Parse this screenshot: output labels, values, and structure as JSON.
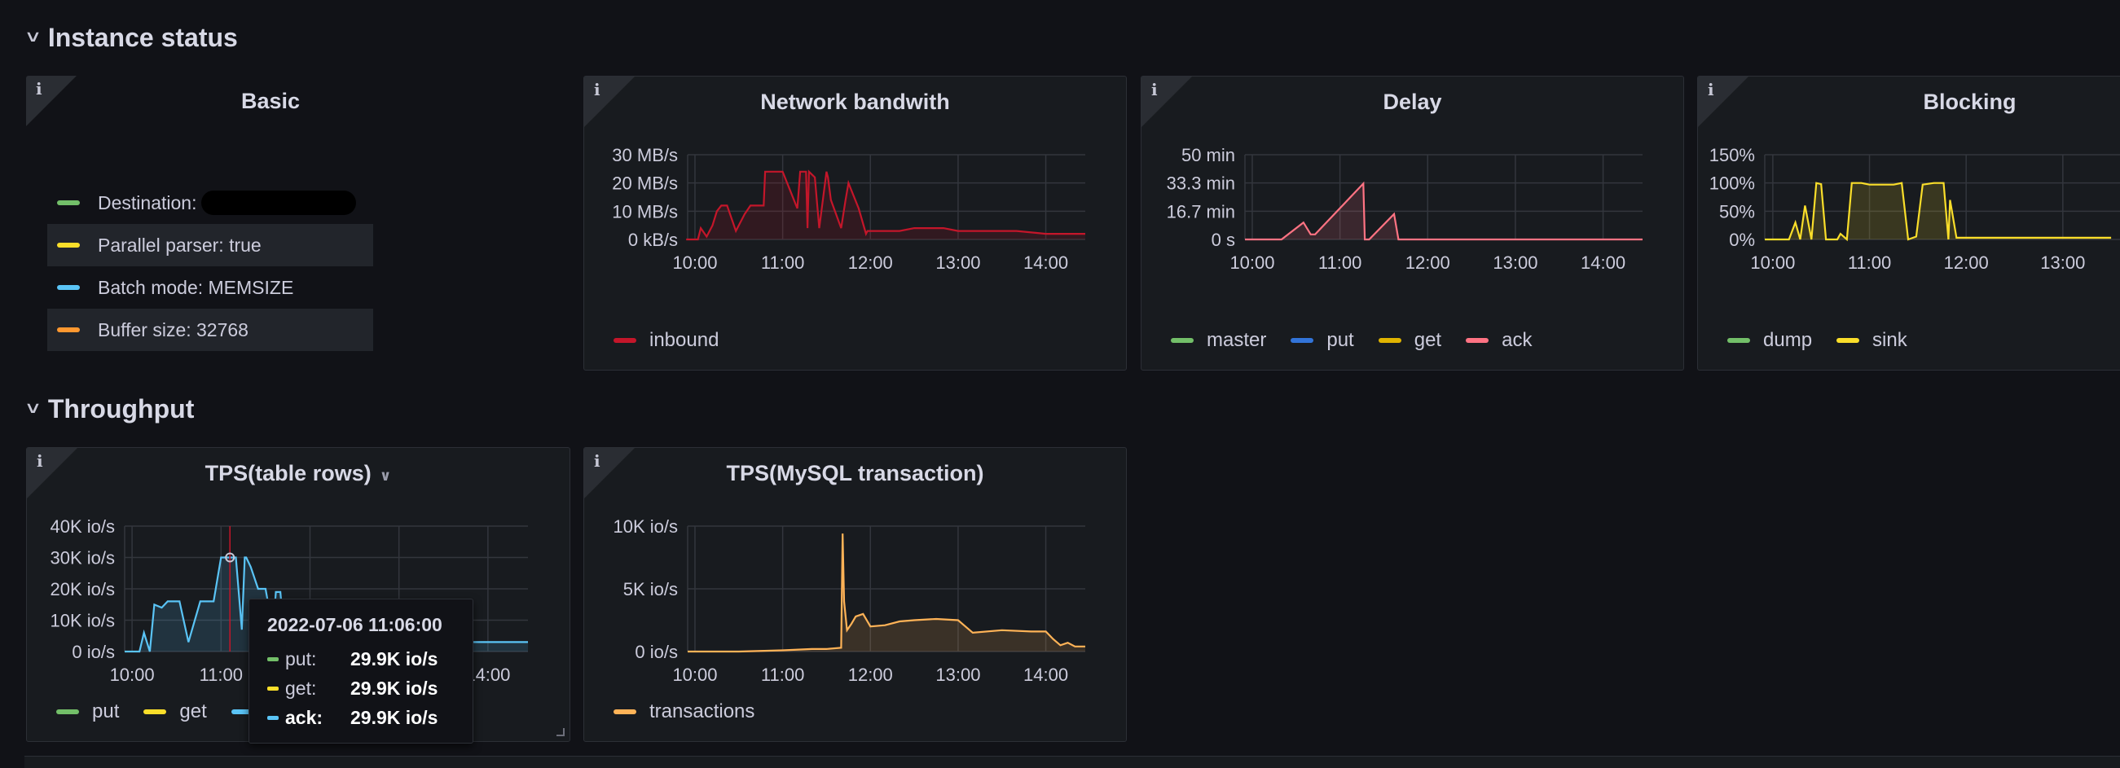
{
  "rows": {
    "instance_status": "Instance status",
    "throughput": "Throughput"
  },
  "basic": {
    "title": "Basic",
    "items": [
      {
        "label": "Destination: ",
        "color": "#73bf69"
      },
      {
        "label": "Parallel parser: true",
        "color": "#fade2a"
      },
      {
        "label": "Batch mode: MEMSIZE",
        "color": "#5ac4f6"
      },
      {
        "label": "Buffer size: 32768",
        "color": "#ff9830"
      }
    ]
  },
  "panels": {
    "network": {
      "title": "Network bandwith",
      "legend": [
        {
          "name": "inbound",
          "color": "#c4162a"
        }
      ]
    },
    "delay": {
      "title": "Delay",
      "legend": [
        {
          "name": "master",
          "color": "#73bf69"
        },
        {
          "name": "put",
          "color": "#3274d9"
        },
        {
          "name": "get",
          "color": "#e0b400"
        },
        {
          "name": "ack",
          "color": "#ff7383"
        }
      ]
    },
    "blocking": {
      "title": "Blocking",
      "legend": [
        {
          "name": "dump",
          "color": "#73bf69"
        },
        {
          "name": "sink",
          "color": "#fade2a"
        }
      ]
    },
    "tps_rows": {
      "title": "TPS(table rows)",
      "legend": [
        {
          "name": "put",
          "color": "#73bf69"
        },
        {
          "name": "get",
          "color": "#fade2a"
        },
        {
          "name": "ack",
          "color": "#5ac4f6"
        }
      ]
    },
    "tps_mysql": {
      "title": "TPS(MySQL transaction)",
      "legend": [
        {
          "name": "transactions",
          "color": "#ffb357"
        }
      ]
    }
  },
  "tooltip": {
    "time": "2022-07-06 11:06:00",
    "rows": [
      {
        "label": "put:",
        "value": "29.9K io/s",
        "color": "#73bf69"
      },
      {
        "label": "get:",
        "value": "29.9K io/s",
        "color": "#fade2a"
      },
      {
        "label": "ack:",
        "value": "29.9K io/s",
        "color": "#5ac4f6"
      }
    ]
  },
  "chart_data": [
    {
      "type": "area",
      "title": "Network bandwith",
      "x_ticks": [
        "10:00",
        "11:00",
        "12:00",
        "13:00",
        "14:00"
      ],
      "y_ticks": [
        "0 kB/s",
        "10 MB/s",
        "20 MB/s",
        "30 MB/s"
      ],
      "ylim": [
        0,
        30
      ],
      "series": [
        {
          "name": "inbound",
          "color": "#c4162a",
          "x": [
            "9:54",
            "10:02",
            "10:04",
            "10:08",
            "10:12",
            "10:15",
            "10:18",
            "10:22",
            "10:28",
            "10:34",
            "10:38",
            "10:47",
            "10:48",
            "10:56",
            "11:00",
            "11:10",
            "11:12",
            "11:16",
            "11:17",
            "11:18",
            "11:22",
            "11:25",
            "11:30",
            "11:31",
            "11:33",
            "11:40",
            "11:43",
            "11:45",
            "11:52",
            "11:57",
            "11:58",
            "12:20",
            "12:30",
            "12:40",
            "12:50",
            "13:00",
            "13:20",
            "13:40",
            "14:00",
            "14:20",
            "14:27"
          ],
          "values": [
            0,
            0,
            4,
            1,
            5,
            10,
            12,
            12,
            3,
            9,
            12,
            12,
            24,
            24,
            24,
            11,
            24,
            24,
            4,
            24,
            22,
            4,
            24,
            22,
            14,
            4,
            14,
            20,
            11,
            2,
            3,
            3,
            4,
            4,
            4,
            3,
            3,
            3,
            2,
            2,
            2
          ]
        }
      ]
    },
    {
      "type": "area",
      "title": "Delay",
      "x_ticks": [
        "10:00",
        "11:00",
        "12:00",
        "13:00",
        "14:00"
      ],
      "y_ticks": [
        "0 s",
        "16.7 min",
        "33.3 min",
        "50 min"
      ],
      "ylim": [
        0,
        50
      ],
      "series": [
        {
          "name": "master",
          "color": "#73bf69",
          "x": [],
          "values": []
        },
        {
          "name": "put",
          "color": "#3274d9",
          "x": [],
          "values": []
        },
        {
          "name": "get",
          "color": "#e0b400",
          "x": [],
          "values": []
        },
        {
          "name": "ack",
          "color": "#ff7383",
          "x": [
            "9:55",
            "10:20",
            "10:35",
            "10:40",
            "10:43",
            "11:16",
            "11:17",
            "11:20",
            "11:37",
            "11:40",
            "14:27"
          ],
          "values": [
            0,
            0,
            10,
            3,
            3,
            33,
            0,
            0,
            15,
            0,
            0
          ]
        }
      ]
    },
    {
      "type": "area",
      "title": "Blocking",
      "x_ticks": [
        "10:00",
        "11:00",
        "12:00",
        "13:00"
      ],
      "y_ticks": [
        "0%",
        "50%",
        "100%",
        "150%"
      ],
      "ylim": [
        0,
        150
      ],
      "series": [
        {
          "name": "dump",
          "color": "#73bf69",
          "x": [],
          "values": []
        },
        {
          "name": "sink",
          "color": "#fade2a",
          "x": [
            "9:55",
            "10:10",
            "10:14",
            "10:17",
            "10:20",
            "10:24",
            "10:27",
            "10:30",
            "10:33",
            "10:40",
            "10:42",
            "10:46",
            "10:49",
            "10:55",
            "11:00",
            "11:10",
            "11:15",
            "11:20",
            "11:24",
            "11:29",
            "11:33",
            "11:40",
            "11:46",
            "11:49",
            "11:50",
            "11:54",
            "12:00",
            "12:40",
            "13:00",
            "13:30"
          ],
          "values": [
            0,
            0,
            30,
            0,
            60,
            0,
            100,
            98,
            0,
            0,
            10,
            0,
            100,
            100,
            97,
            97,
            97,
            100,
            0,
            5,
            97,
            100,
            100,
            0,
            70,
            3,
            3,
            3,
            3,
            3
          ]
        }
      ]
    },
    {
      "type": "area",
      "title": "TPS(table rows)",
      "x_ticks": [
        "10:00",
        "11:00",
        "12:00",
        "13:00",
        "14:00"
      ],
      "y_ticks": [
        "0 io/s",
        "10K io/s",
        "20K io/s",
        "30K io/s",
        "40K io/s"
      ],
      "ylim": [
        0,
        40
      ],
      "series": [
        {
          "name": "put",
          "color": "#73bf69",
          "x": [],
          "values": []
        },
        {
          "name": "get",
          "color": "#fade2a",
          "x": [],
          "values": []
        },
        {
          "name": "ack",
          "color": "#5ac4f6",
          "x": [
            "9:55",
            "10:05",
            "10:08",
            "10:12",
            "10:15",
            "10:20",
            "10:24",
            "10:32",
            "10:38",
            "10:46",
            "10:55",
            "11:00",
            "11:10",
            "11:14",
            "11:16",
            "11:17",
            "11:20",
            "11:25",
            "11:30",
            "11:35",
            "11:37",
            "11:40",
            "11:43",
            "11:47",
            "11:50",
            "14:27"
          ],
          "values": [
            0,
            0,
            6,
            0,
            15,
            14,
            16,
            16,
            3,
            16,
            16,
            30,
            30,
            7,
            30,
            30,
            27,
            20,
            20,
            7,
            19,
            19,
            3,
            3,
            3,
            3
          ]
        }
      ]
    },
    {
      "type": "area",
      "title": "TPS(MySQL transaction)",
      "x_ticks": [
        "10:00",
        "11:00",
        "12:00",
        "13:00",
        "14:00"
      ],
      "y_ticks": [
        "0 io/s",
        "5K io/s",
        "10K io/s"
      ],
      "ylim": [
        0,
        10
      ],
      "series": [
        {
          "name": "transactions",
          "color": "#ffb357",
          "x": [
            "9:55",
            "10:30",
            "11:00",
            "11:20",
            "11:30",
            "11:40",
            "11:41",
            "11:42",
            "11:44",
            "11:47",
            "11:50",
            "11:55",
            "12:00",
            "12:10",
            "12:20",
            "12:30",
            "12:45",
            "13:00",
            "13:10",
            "13:30",
            "13:50",
            "14:00",
            "14:05",
            "14:10",
            "14:15",
            "14:20",
            "14:27"
          ],
          "values": [
            0,
            0,
            0.1,
            0.2,
            0.2,
            0.3,
            9.4,
            4,
            1.7,
            2.2,
            2.8,
            3,
            2,
            2.1,
            2.4,
            2.5,
            2.6,
            2.5,
            1.5,
            1.7,
            1.6,
            1.6,
            1,
            0.5,
            0.7,
            0.4,
            0.4
          ]
        }
      ]
    }
  ]
}
